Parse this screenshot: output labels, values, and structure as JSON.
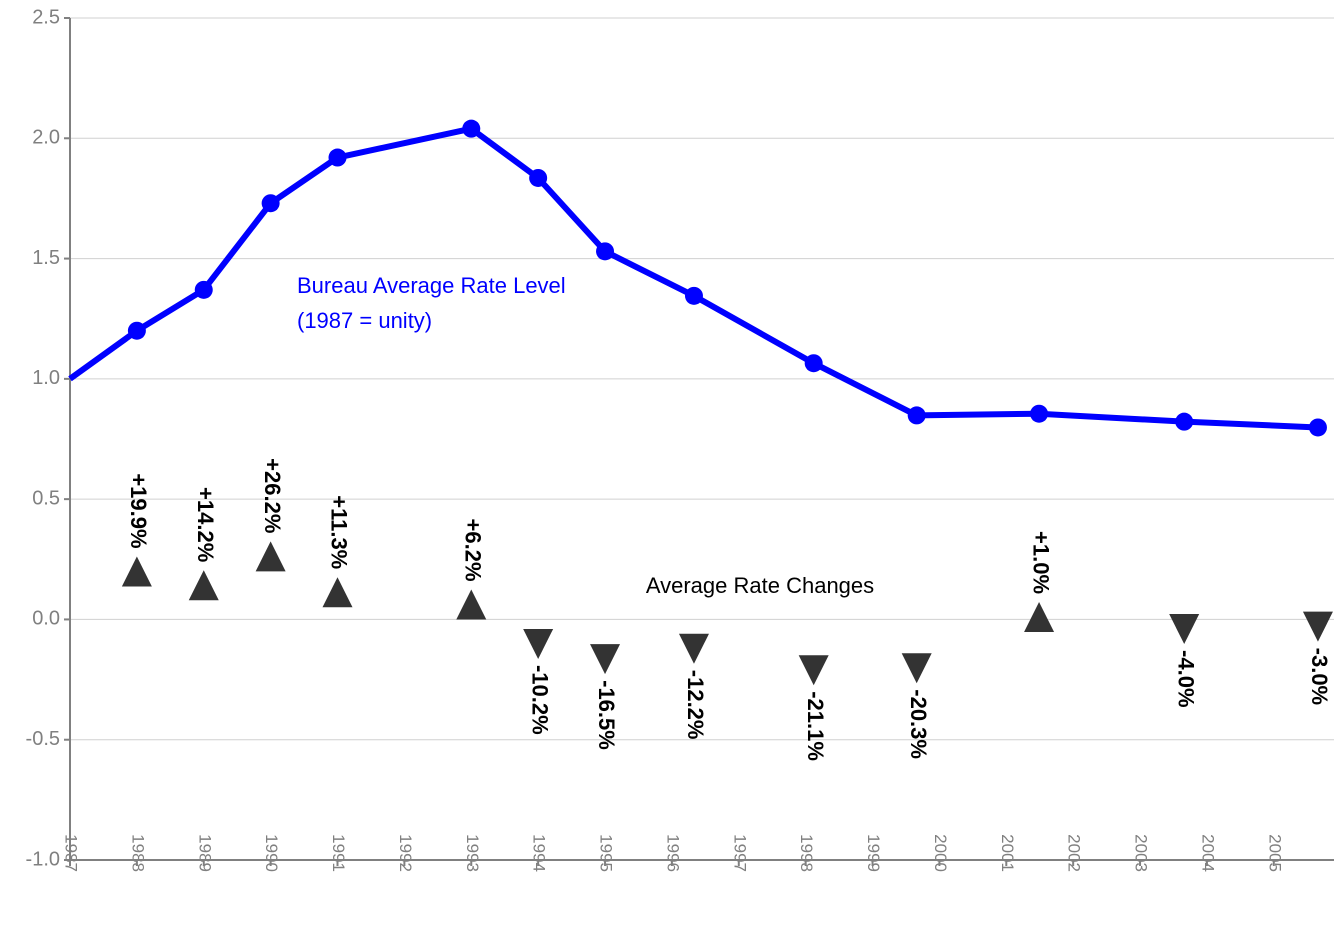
{
  "chart_data": {
    "type": "line",
    "ylim": [
      -1.0,
      2.5
    ],
    "yticks": [
      {
        "value": -1,
        "label": "-1.0"
      },
      {
        "value": -0.5,
        "label": "-0.5"
      },
      {
        "value": 0,
        "label": "0.0"
      },
      {
        "value": 0.5,
        "label": "0.5"
      },
      {
        "value": 1,
        "label": "1.0"
      },
      {
        "value": 1.5,
        "label": "1.5"
      },
      {
        "value": 2,
        "label": "2.0"
      },
      {
        "value": 2.5,
        "label": "2.5"
      }
    ],
    "xlim": [
      1987,
      2005.9
    ],
    "xticks": [
      1987,
      1988,
      1989,
      1990,
      1991,
      1992,
      1993,
      1994,
      1995,
      1996,
      1997,
      1998,
      1999,
      2000,
      2001,
      2002,
      2003,
      2004,
      2005
    ],
    "grid": true,
    "series": [
      {
        "name": "Bureau Average Rate Level",
        "name_note": "(1987 = unity)",
        "style": "line",
        "color": "#0000ff",
        "x": [
          1987,
          1988,
          1989,
          1990,
          1991,
          1993,
          1994,
          1995,
          1996.33,
          1998.12,
          1999.66,
          2001.49,
          2003.66,
          2005.66
        ],
        "values": [
          1.0,
          1.2,
          1.37,
          1.73,
          1.92,
          2.04,
          1.835,
          1.53,
          1.345,
          1.065,
          0.848,
          0.855,
          0.822,
          0.798
        ]
      },
      {
        "name": "Average Rate Changes",
        "style": "triangles",
        "color": "#333333",
        "x": [
          1988,
          1989,
          1990,
          1991,
          1993,
          1994,
          1995,
          1996.33,
          1998.12,
          1999.66,
          2001.49,
          2003.66,
          2005.66
        ],
        "values": [
          0.199,
          0.142,
          0.262,
          0.113,
          0.062,
          -0.102,
          -0.165,
          -0.122,
          -0.211,
          -0.203,
          0.01,
          -0.04,
          -0.03
        ],
        "value_labels": [
          "+19.9%",
          "+14.2%",
          "+26.2%",
          "+11.3%",
          "+6.2%",
          "-10.2%",
          "-16.5%",
          "-12.2%",
          "-21.1%",
          "-20.3%",
          "+1.0%",
          "-4.0%",
          "-3.0%"
        ]
      }
    ]
  }
}
